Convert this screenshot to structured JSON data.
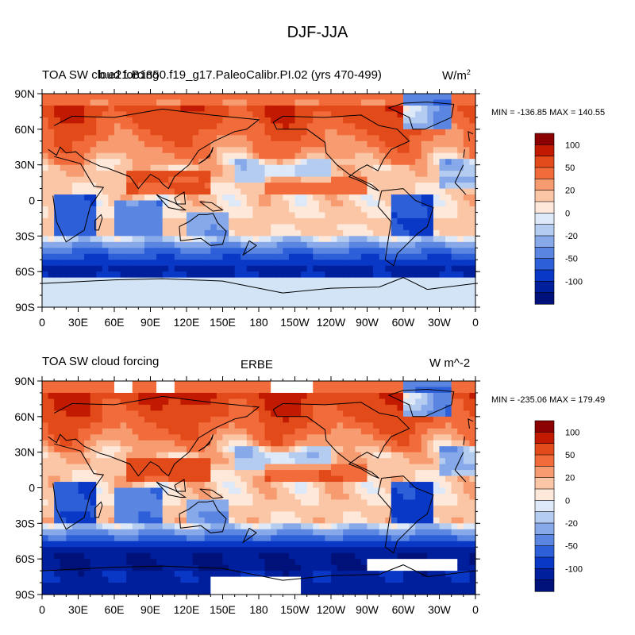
{
  "title": "DJF-JJA",
  "panels": [
    {
      "left_label": "TOA SW cloud forcing",
      "center_label": "b.e21.B1850.f19_g17.PaleoCalibr.PI.02 (yrs 470-499)",
      "units_main": "W/m",
      "units_sup": "2",
      "minmax": "MIN = -136.85 MAX = 140.55"
    },
    {
      "left_label": "TOA SW cloud forcing",
      "center_label": "ERBE",
      "units_main": "W m^-2",
      "units_sup": "",
      "minmax": "MIN = -235.06 MAX = 179.49"
    }
  ],
  "lat_labels": [
    "90N",
    "60N",
    "30N",
    "0",
    "30S",
    "60S",
    "90S"
  ],
  "lon_labels": [
    "0",
    "30E",
    "60E",
    "90E",
    "120E",
    "150E",
    "180",
    "150W",
    "120W",
    "90W",
    "60W",
    "30W",
    "0"
  ],
  "colorbar": {
    "colors": [
      "#8b0000",
      "#c21a00",
      "#e34a1a",
      "#f26b3a",
      "#f79b70",
      "#fbc6a6",
      "#fde8da",
      "#dde8f8",
      "#b5ccf1",
      "#87a9ea",
      "#5a86e2",
      "#2d5fd8",
      "#0a38c6",
      "#001f9c",
      "#00127a"
    ],
    "labels": [
      "100",
      "50",
      "20",
      "0",
      "-20",
      "-50",
      "-100"
    ]
  },
  "colors": {
    "land_line": "#000000",
    "missing": "#ffffff"
  }
}
